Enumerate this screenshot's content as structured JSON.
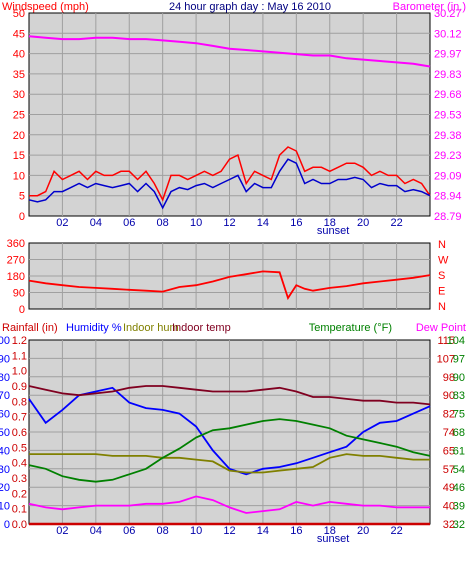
{
  "colors": {
    "background": "#ffffff",
    "plot_bg": "#d3d3d3",
    "grid": "#a0a0a0",
    "wind": "#ff0000",
    "gust": "#ff0000",
    "wind_avg": "#0000cc",
    "baro": "#ff00ff",
    "direction": "#ff0000",
    "rain": "#cc0000",
    "humidity": "#0000ff",
    "indoor_hum": "#808000",
    "indoor_temp": "#800020",
    "temperature": "#008000",
    "dew_point": "#ff00ff"
  },
  "chart_data": [
    {
      "type": "line",
      "title": "24 hour graph day : May 16 2010",
      "left_axis_label": "Windspeed (mph)",
      "right_axis_label": "Barometer (in.)",
      "left_ticks": [
        "0",
        "5",
        "10",
        "15",
        "20",
        "25",
        "30",
        "35",
        "40",
        "45",
        "50"
      ],
      "right_ticks": [
        "28.79",
        "28.94",
        "29.09",
        "29.23",
        "29.38",
        "29.53",
        "29.68",
        "29.83",
        "29.97",
        "30.12",
        "30.27"
      ],
      "x_ticks": [
        "02",
        "04",
        "06",
        "08",
        "10",
        "12",
        "14",
        "16",
        "18",
        "20",
        "22"
      ],
      "x_marker": "sunset",
      "ylim": [
        0,
        50
      ],
      "y2lim": [
        28.79,
        30.27
      ],
      "grid": true,
      "series": [
        {
          "key": "gust",
          "x": [
            0,
            0.5,
            1,
            1.5,
            2,
            2.5,
            3,
            3.5,
            4,
            4.5,
            5,
            5.5,
            6,
            6.5,
            7,
            7.5,
            8,
            8.5,
            9,
            9.5,
            10,
            10.5,
            11,
            11.5,
            12,
            12.5,
            13,
            13.5,
            14,
            14.5,
            15,
            15.5,
            16,
            16.5,
            17,
            17.5,
            18,
            18.5,
            19,
            19.5,
            20,
            20.5,
            21,
            21.5,
            22,
            22.5,
            23,
            23.5,
            24
          ],
          "values": [
            5,
            5,
            6,
            11,
            9,
            10,
            11,
            9,
            11,
            10,
            10,
            11,
            11,
            9,
            11,
            8,
            4,
            10,
            10,
            9,
            10,
            11,
            10,
            11,
            14,
            15,
            8,
            11,
            10,
            9,
            15,
            17,
            16,
            11,
            12,
            12,
            11,
            12,
            13,
            13,
            12,
            10,
            11,
            10,
            10,
            8,
            9,
            8,
            5
          ]
        },
        {
          "key": "wind_avg",
          "x": [
            0,
            0.5,
            1,
            1.5,
            2,
            2.5,
            3,
            3.5,
            4,
            4.5,
            5,
            5.5,
            6,
            6.5,
            7,
            7.5,
            8,
            8.5,
            9,
            9.5,
            10,
            10.5,
            11,
            11.5,
            12,
            12.5,
            13,
            13.5,
            14,
            14.5,
            15,
            15.5,
            16,
            16.5,
            17,
            17.5,
            18,
            18.5,
            19,
            19.5,
            20,
            20.5,
            21,
            21.5,
            22,
            22.5,
            23,
            23.5,
            24
          ],
          "values": [
            4,
            3.5,
            4,
            6,
            6,
            7,
            8,
            7,
            8,
            7.5,
            7,
            7.5,
            8,
            6,
            8,
            6,
            2,
            6,
            7,
            6.5,
            7.5,
            8,
            7,
            8,
            9,
            10,
            6,
            8,
            7,
            7,
            11,
            14,
            13,
            8,
            9,
            8,
            8,
            9,
            9,
            9.5,
            9,
            7,
            8,
            7.5,
            7.5,
            6,
            6.5,
            6,
            5
          ]
        },
        {
          "key": "baro",
          "axis": "right",
          "x": [
            0,
            1,
            2,
            3,
            4,
            5,
            6,
            7,
            8,
            9,
            10,
            11,
            12,
            13,
            14,
            15,
            16,
            17,
            18,
            19,
            20,
            21,
            22,
            23,
            24
          ],
          "values": [
            30.1,
            30.09,
            30.08,
            30.08,
            30.09,
            30.09,
            30.08,
            30.08,
            30.07,
            30.06,
            30.05,
            30.03,
            30.01,
            30.0,
            29.99,
            29.98,
            29.97,
            29.96,
            29.96,
            29.94,
            29.93,
            29.92,
            29.91,
            29.9,
            29.88
          ]
        }
      ]
    },
    {
      "type": "line",
      "right_axis_label": "N W S E N",
      "left_ticks": [
        "0",
        "90",
        "180",
        "270",
        "360"
      ],
      "ylim": [
        0,
        360
      ],
      "grid": true,
      "series": [
        {
          "key": "direction",
          "x": [
            0,
            1,
            2,
            3,
            4,
            5,
            6,
            7,
            8,
            9,
            10,
            11,
            12,
            13,
            14,
            15,
            15.5,
            16,
            16.5,
            17,
            18,
            19,
            20,
            21,
            22,
            23,
            24
          ],
          "values": [
            155,
            140,
            130,
            120,
            115,
            110,
            105,
            100,
            95,
            120,
            130,
            150,
            175,
            190,
            205,
            200,
            60,
            130,
            110,
            100,
            115,
            125,
            140,
            150,
            160,
            170,
            185
          ]
        }
      ]
    },
    {
      "type": "line",
      "left_axis_label": "Rainfall (in)",
      "labels_center": [
        "Humidity %",
        "Indoor hum",
        "Indoor temp"
      ],
      "right_axis_label": "Temperature (°F)",
      "right_axis_label2": "Dew Point",
      "rain_ticks": [
        "0.0",
        "0.1",
        "0.2",
        "0.3",
        "0.4",
        "0.5",
        "0.6",
        "0.7",
        "0.8",
        "0.9",
        "1.0",
        "1.1",
        "1.2"
      ],
      "hum_ticks": [
        "0",
        "10",
        "20",
        "30",
        "40",
        "50",
        "60",
        "70",
        "80",
        "90",
        "100"
      ],
      "temp_ticks_a": [
        "32",
        "40",
        "49",
        "57",
        "65",
        "74",
        "82",
        "90",
        "98",
        "107",
        "115"
      ],
      "temp_ticks_b": [
        "32",
        "39",
        "46",
        "54",
        "61",
        "68",
        "75",
        "83",
        "90",
        "97",
        "104"
      ],
      "ylim": [
        0,
        100
      ],
      "grid": true,
      "series": [
        {
          "key": "rain",
          "x": [
            0,
            24
          ],
          "values": [
            0,
            0
          ]
        },
        {
          "key": "humidity",
          "x": [
            0,
            1,
            2,
            3,
            4,
            5,
            6,
            7,
            8,
            9,
            10,
            11,
            12,
            13,
            14,
            15,
            16,
            17,
            18,
            19,
            20,
            21,
            22,
            23,
            24
          ],
          "values": [
            68,
            55,
            62,
            70,
            72,
            74,
            66,
            63,
            62,
            60,
            53,
            40,
            30,
            27,
            30,
            31,
            33,
            36,
            39,
            42,
            50,
            55,
            56,
            60,
            64
          ]
        },
        {
          "key": "indoor_hum",
          "x": [
            0,
            1,
            2,
            3,
            4,
            5,
            6,
            7,
            8,
            9,
            10,
            11,
            12,
            13,
            14,
            15,
            16,
            17,
            18,
            19,
            20,
            21,
            22,
            23,
            24
          ],
          "values": [
            38,
            38,
            38,
            38,
            38,
            37,
            37,
            37,
            36,
            36,
            35,
            34,
            29,
            28,
            28,
            29,
            30,
            31,
            36,
            38,
            37,
            37,
            36,
            35,
            35
          ]
        },
        {
          "key": "indoor_temp",
          "x": [
            0,
            1,
            2,
            3,
            4,
            5,
            6,
            7,
            8,
            9,
            10,
            11,
            12,
            13,
            14,
            15,
            16,
            17,
            18,
            19,
            20,
            21,
            22,
            23,
            24
          ],
          "values": [
            75,
            73,
            71,
            70,
            71,
            72,
            74,
            75,
            75,
            74,
            73,
            72,
            72,
            72,
            73,
            74,
            72,
            69,
            69,
            68,
            67,
            67,
            66,
            66,
            65
          ]
        },
        {
          "key": "temperature",
          "x": [
            0,
            1,
            2,
            3,
            4,
            5,
            6,
            7,
            8,
            9,
            10,
            11,
            12,
            13,
            14,
            15,
            16,
            17,
            18,
            19,
            20,
            21,
            22,
            23,
            24
          ],
          "values": [
            32,
            30,
            26,
            24,
            23,
            24,
            27,
            30,
            36,
            41,
            47,
            51,
            52,
            54,
            56,
            57,
            56,
            54,
            52,
            48,
            46,
            44,
            42,
            39,
            37
          ]
        },
        {
          "key": "dew_point",
          "x": [
            0,
            1,
            2,
            3,
            4,
            5,
            6,
            7,
            8,
            9,
            10,
            11,
            12,
            13,
            14,
            15,
            16,
            17,
            18,
            19,
            20,
            21,
            22,
            23,
            24
          ],
          "values": [
            11,
            9,
            8,
            9,
            10,
            10,
            10,
            11,
            11,
            12,
            15,
            13,
            9,
            6,
            7,
            8,
            12,
            10,
            12,
            11,
            10,
            10,
            9,
            9,
            9
          ]
        }
      ]
    }
  ]
}
